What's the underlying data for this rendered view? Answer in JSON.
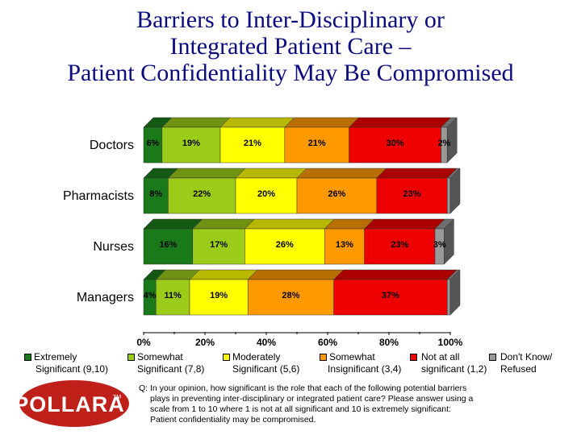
{
  "title_lines": [
    "Barriers to Inter-Disciplinary or",
    "Integrated Patient Care –",
    "Patient Confidentiality May Be Compromised"
  ],
  "chart_data": {
    "type": "bar",
    "orientation": "horizontal",
    "stacked": true,
    "percent": true,
    "categories": [
      "Doctors",
      "Pharmacists",
      "Nurses",
      "Managers"
    ],
    "series": [
      {
        "name": "Extremely Significant (9,10)",
        "color": "#1a7a1a",
        "values": [
          6,
          8,
          16,
          4
        ],
        "labels": [
          "6%",
          "8%",
          "16%",
          "4%"
        ]
      },
      {
        "name": "Somewhat Significant (7,8)",
        "color": "#9ccc1a",
        "values": [
          19,
          22,
          17,
          11
        ],
        "labels": [
          "19%",
          "22%",
          "17%",
          "11%"
        ]
      },
      {
        "name": "Moderately Significant (5,6)",
        "color": "#ffff00",
        "values": [
          21,
          20,
          26,
          19
        ],
        "labels": [
          "21%",
          "20%",
          "26%",
          "19%"
        ]
      },
      {
        "name": "Somewhat Insignificant (3,4)",
        "color": "#ff9900",
        "values": [
          21,
          26,
          13,
          28
        ],
        "labels": [
          "21%",
          "26%",
          "13%",
          "28%"
        ]
      },
      {
        "name": "Not at all significant (1,2)",
        "color": "#ee0000",
        "values": [
          30,
          23,
          23,
          37
        ],
        "labels": [
          "30%",
          "23%",
          "23%",
          "37%"
        ]
      },
      {
        "name": "Don't Know/ Refused",
        "color": "#999999",
        "values": [
          2,
          1,
          3,
          1
        ],
        "labels": [
          "2%",
          "",
          "3%",
          ""
        ]
      }
    ],
    "xlim": [
      0,
      100
    ],
    "xticks": [
      "0%",
      "20%",
      "40%",
      "60%",
      "80%",
      "100%"
    ]
  },
  "legend": [
    {
      "line1": "Extremely",
      "line2": "Significant (9,10)",
      "color": "#1a7a1a"
    },
    {
      "line1": "Somewhat",
      "line2": "Significant (7,8)",
      "color": "#9ccc1a"
    },
    {
      "line1": "Moderately",
      "line2": "Significant (5,6)",
      "color": "#ffff00"
    },
    {
      "line1": "Somewhat",
      "line2": "Insignificant (3,4)",
      "color": "#ff9900"
    },
    {
      "line1": "Not at all",
      "line2": "significant (1,2)",
      "color": "#ee0000"
    },
    {
      "line1": "Don't Know/",
      "line2": "Refused",
      "color": "#999999"
    }
  ],
  "logo_text": "POLLARA",
  "logo_tm": "TM",
  "question_lines": [
    "Q: In your opinion, how significant is the role that each of the following potential barriers",
    "plays in preventing inter-disciplinary or integrated patient care? Please answer using a",
    "scale from 1 to 10 where 1 is not at all significant and 10 is extremely significant:",
    "Patient confidentiality may be compromised."
  ],
  "colors": {
    "title": "#0b0b80",
    "logo_fill": "#c0201a",
    "logo_text": "#ffffff"
  }
}
